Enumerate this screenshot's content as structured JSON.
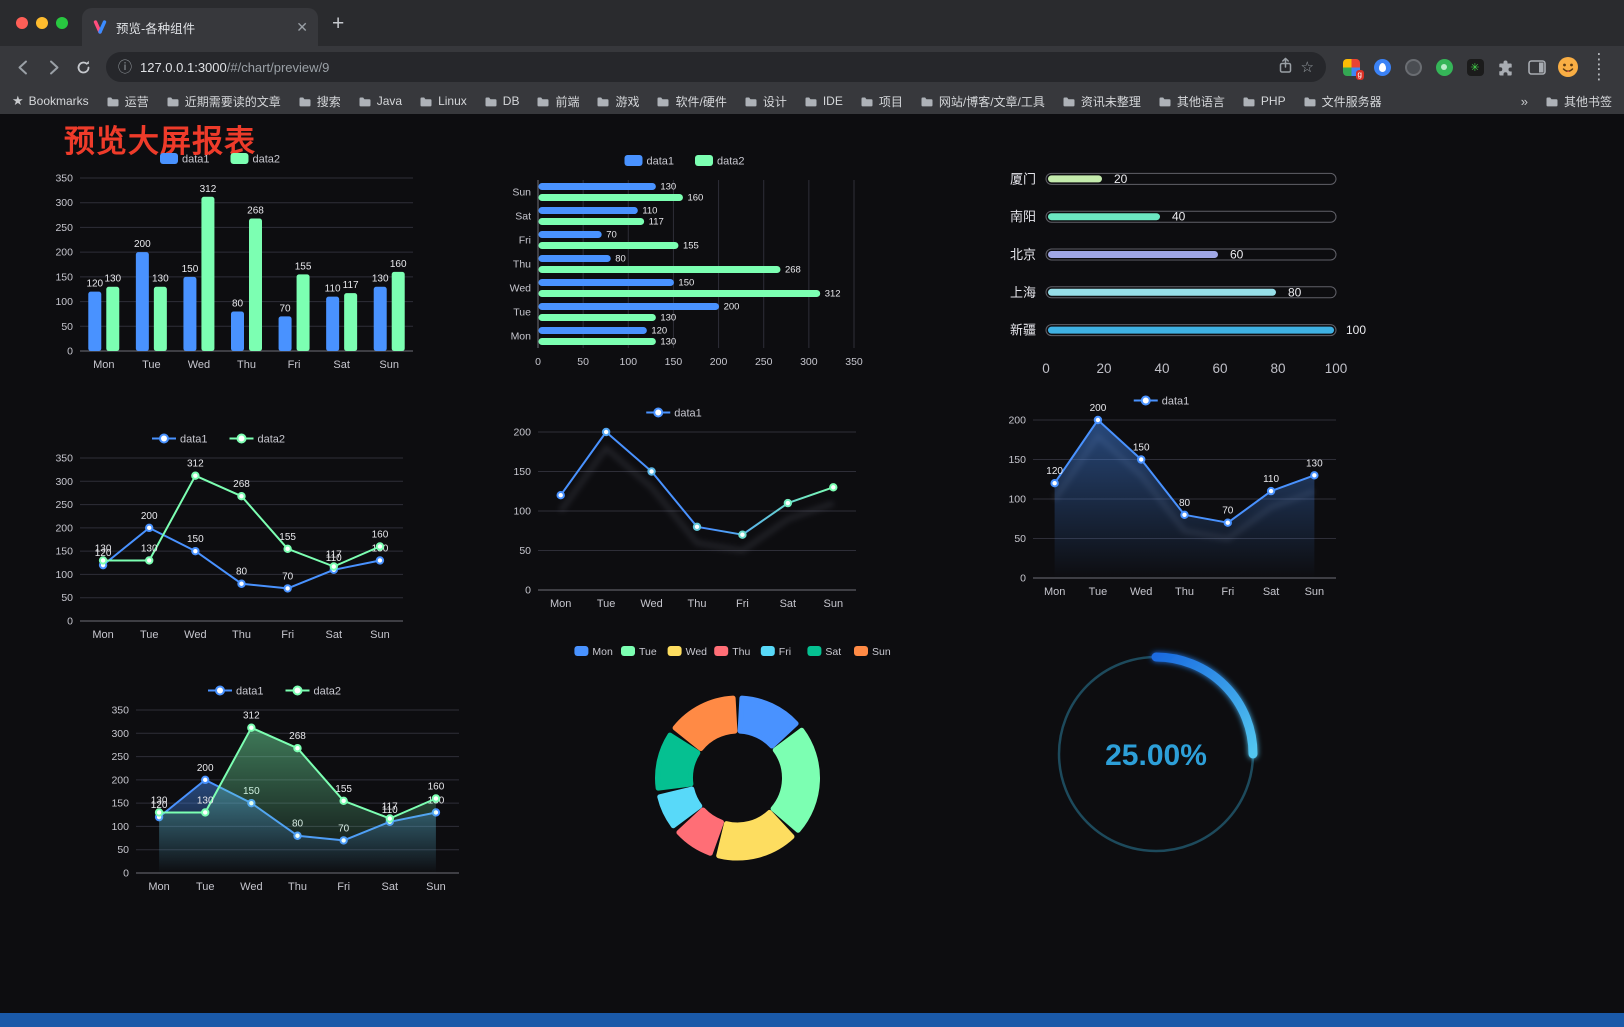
{
  "browser": {
    "tab_title": "预览-各种组件",
    "url_host": "127.0.0.1:3000",
    "url_path": "/#/chart/preview/9",
    "bookmarks_label": "Bookmarks",
    "bookmarks": [
      "运营",
      "近期需要读的文章",
      "搜索",
      "Java",
      "Linux",
      "DB",
      "前端",
      "游戏",
      "软件/硬件",
      "设计",
      "IDE",
      "项目",
      "网站/博客/文章/工具",
      "资讯未整理",
      "其他语言",
      "PHP",
      "文件服务器"
    ],
    "bookmarks_overflow": "»",
    "other_bookmarks": "其他书签"
  },
  "page": {
    "title": "预览大屏报表"
  },
  "chart_data": [
    {
      "id": "bar1",
      "type": "grouped_bar",
      "categories": [
        "Mon",
        "Tue",
        "Wed",
        "Thu",
        "Fri",
        "Sat",
        "Sun"
      ],
      "series": [
        {
          "name": "data1",
          "color": "#4992ff",
          "values": [
            120,
            200,
            150,
            80,
            70,
            110,
            130
          ]
        },
        {
          "name": "data2",
          "color": "#7cffb2",
          "values": [
            130,
            130,
            312,
            268,
            155,
            117,
            160
          ]
        }
      ],
      "ylim": [
        0,
        350
      ],
      "yticks": [
        0,
        50,
        100,
        150,
        200,
        250,
        300,
        350
      ],
      "legend_position": "top",
      "grid": true
    },
    {
      "id": "hbar1",
      "type": "hbar",
      "categories": [
        "Mon",
        "Tue",
        "Wed",
        "Thu",
        "Fri",
        "Sat",
        "Sun"
      ],
      "series": [
        {
          "name": "data1",
          "color": "#4992ff",
          "values": [
            120,
            200,
            150,
            80,
            70,
            110,
            130
          ]
        },
        {
          "name": "data2",
          "color": "#7cffb2",
          "values": [
            130,
            130,
            312,
            268,
            155,
            117,
            160
          ]
        }
      ],
      "xlim": [
        0,
        350
      ],
      "xticks": [
        0,
        50,
        100,
        150,
        200,
        250,
        300,
        350
      ],
      "legend_position": "top"
    },
    {
      "id": "capsule1",
      "type": "capsule",
      "rows": [
        {
          "label": "厦门",
          "value": 20,
          "color": "#c4ebad"
        },
        {
          "label": "南阳",
          "value": 40,
          "color": "#6be6c1"
        },
        {
          "label": "北京",
          "value": 60,
          "color": "#a0a7e6"
        },
        {
          "label": "上海",
          "value": 80,
          "color": "#96dee8"
        },
        {
          "label": "新疆",
          "value": 100,
          "color": "#3fb1e3"
        }
      ],
      "xlim": [
        0,
        100
      ],
      "xticks": [
        0,
        20,
        40,
        60,
        80,
        100
      ]
    },
    {
      "id": "line1",
      "type": "line",
      "categories": [
        "Mon",
        "Tue",
        "Wed",
        "Thu",
        "Fri",
        "Sat",
        "Sun"
      ],
      "series": [
        {
          "name": "data1",
          "color": "#4992ff",
          "values": [
            120,
            200,
            150,
            80,
            70,
            110,
            130
          ],
          "labels": true
        },
        {
          "name": "data2",
          "color": "#7cffb2",
          "values": [
            130,
            130,
            312,
            268,
            155,
            117,
            160
          ],
          "labels": true
        }
      ],
      "ylim": [
        0,
        350
      ],
      "yticks": [
        0,
        50,
        100,
        150,
        200,
        250,
        300,
        350
      ],
      "legend_position": "top"
    },
    {
      "id": "line2",
      "type": "line",
      "categories": [
        "Mon",
        "Tue",
        "Wed",
        "Thu",
        "Fri",
        "Sat",
        "Sun"
      ],
      "series": [
        {
          "name": "data1",
          "color": "#4992ff",
          "gradient": [
            "#4992ff",
            "#7cffb2"
          ],
          "values": [
            120,
            200,
            150,
            80,
            70,
            110,
            130
          ],
          "labels": false,
          "shadow": true
        }
      ],
      "ylim": [
        0,
        200
      ],
      "yticks": [
        0,
        50,
        100,
        150,
        200
      ],
      "legend_position": "top"
    },
    {
      "id": "line3",
      "type": "line",
      "categories": [
        "Mon",
        "Tue",
        "Wed",
        "Thu",
        "Fri",
        "Sat",
        "Sun"
      ],
      "series": [
        {
          "name": "data1",
          "color": "#4992ff",
          "values": [
            120,
            200,
            150,
            80,
            70,
            110,
            130
          ],
          "labels": true,
          "area": true,
          "shadow": true
        }
      ],
      "ylim": [
        0,
        200
      ],
      "yticks": [
        0,
        50,
        100,
        150,
        200
      ],
      "legend_position": "top"
    },
    {
      "id": "line4",
      "type": "line",
      "categories": [
        "Mon",
        "Tue",
        "Wed",
        "Thu",
        "Fri",
        "Sat",
        "Sun"
      ],
      "series": [
        {
          "name": "data1",
          "color": "#4992ff",
          "values": [
            120,
            200,
            150,
            80,
            70,
            110,
            130
          ],
          "labels": true,
          "area": true
        },
        {
          "name": "data2",
          "color": "#7cffb2",
          "values": [
            130,
            130,
            312,
            268,
            155,
            117,
            160
          ],
          "labels": true,
          "area": true
        }
      ],
      "ylim": [
        0,
        350
      ],
      "yticks": [
        0,
        50,
        100,
        150,
        200,
        250,
        300,
        350
      ],
      "legend_position": "top"
    },
    {
      "id": "donut1",
      "type": "donut",
      "items": [
        {
          "label": "Mon",
          "value": 120,
          "color": "#4992ff"
        },
        {
          "label": "Tue",
          "value": 200,
          "color": "#7cffb2"
        },
        {
          "label": "Wed",
          "value": 150,
          "color": "#fddd60"
        },
        {
          "label": "Thu",
          "value": 80,
          "color": "#ff6e76"
        },
        {
          "label": "Fri",
          "value": 70,
          "color": "#58d9f9"
        },
        {
          "label": "Sat",
          "value": 110,
          "color": "#05c091"
        },
        {
          "label": "Sun",
          "value": 130,
          "color": "#ff8a45"
        }
      ],
      "legend_position": "top"
    },
    {
      "id": "gauge1",
      "type": "gauge",
      "value": 25,
      "max": 100,
      "label": "25.00%",
      "color_start": "#1a6be0",
      "color_end": "#53c7f0",
      "text_color": "#2d9fd8",
      "ring_color": "#1d4a5c"
    }
  ]
}
